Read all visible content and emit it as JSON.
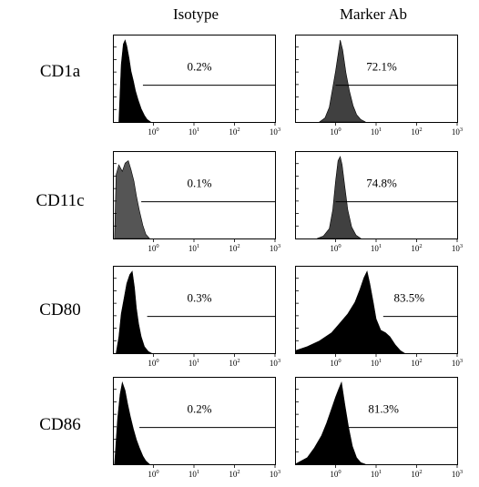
{
  "columns": [
    "Isotype",
    "Marker Ab"
  ],
  "rows": [
    "CD1a",
    "CD11c",
    "CD80",
    "CD86"
  ],
  "chart_data": [
    {
      "type": "area",
      "row": "CD1a",
      "column": "Isotype",
      "fill": "#000000",
      "gate_percent": "0.2%",
      "gate_from": 0.55,
      "xscale": "log",
      "xlim": [
        0.1,
        1000
      ],
      "xticks": [
        "10^0",
        "10^1",
        "10^2",
        "10^3"
      ],
      "x": [
        0.14,
        0.16,
        0.18,
        0.2,
        0.22,
        0.25,
        0.28,
        0.32,
        0.36,
        0.42,
        0.5,
        0.6,
        0.7,
        0.85
      ],
      "y": [
        0,
        0.7,
        0.95,
        1.0,
        0.93,
        0.78,
        0.62,
        0.5,
        0.38,
        0.27,
        0.16,
        0.08,
        0.03,
        0
      ]
    },
    {
      "type": "area",
      "row": "CD1a",
      "column": "Marker Ab",
      "fill": "#404040",
      "gate_percent": "72.1%",
      "gate_from": 1.0,
      "xscale": "log",
      "xlim": [
        0.1,
        1000
      ],
      "xticks": [
        "10^0",
        "10^1",
        "10^2",
        "10^3"
      ],
      "x": [
        0.4,
        0.55,
        0.7,
        0.85,
        1.0,
        1.15,
        1.3,
        1.5,
        1.8,
        2.2,
        2.7,
        3.3,
        4.2,
        5.5
      ],
      "y": [
        0,
        0.05,
        0.18,
        0.42,
        0.62,
        0.82,
        1.0,
        0.88,
        0.6,
        0.38,
        0.2,
        0.09,
        0.03,
        0
      ]
    },
    {
      "type": "area",
      "row": "CD11c",
      "column": "Isotype",
      "fill": "#555555",
      "gate_percent": "0.1%",
      "gate_from": 0.5,
      "xscale": "log",
      "xlim": [
        0.1,
        1000
      ],
      "xticks": [
        "10^0",
        "10^1",
        "10^2",
        "10^3"
      ],
      "x": [
        0.11,
        0.12,
        0.14,
        0.17,
        0.2,
        0.24,
        0.28,
        0.33,
        0.38,
        0.45,
        0.55,
        0.65,
        0.8
      ],
      "y": [
        0,
        0.78,
        0.9,
        0.82,
        0.92,
        0.95,
        0.84,
        0.7,
        0.52,
        0.34,
        0.16,
        0.05,
        0
      ]
    },
    {
      "type": "area",
      "row": "CD11c",
      "column": "Marker Ab",
      "fill": "#404040",
      "gate_percent": "74.8%",
      "gate_from": 1.0,
      "xscale": "log",
      "xlim": [
        0.1,
        1000
      ],
      "xticks": [
        "10^0",
        "10^1",
        "10^2",
        "10^3"
      ],
      "x": [
        0.35,
        0.5,
        0.7,
        0.85,
        1.0,
        1.15,
        1.3,
        1.45,
        1.7,
        2.0,
        2.5,
        3.2,
        4.2
      ],
      "y": [
        0,
        0.03,
        0.12,
        0.35,
        0.7,
        0.95,
        1.0,
        0.9,
        0.62,
        0.35,
        0.14,
        0.04,
        0
      ]
    },
    {
      "type": "area",
      "row": "CD80",
      "column": "Isotype",
      "fill": "#000000",
      "gate_percent": "0.3%",
      "gate_from": 0.7,
      "xscale": "log",
      "xlim": [
        0.1,
        1000
      ],
      "xticks": [
        "10^0",
        "10^1",
        "10^2",
        "10^3"
      ],
      "x": [
        0.12,
        0.14,
        0.16,
        0.19,
        0.22,
        0.26,
        0.3,
        0.34,
        0.38,
        0.43,
        0.5,
        0.6,
        0.75,
        0.9
      ],
      "y": [
        0,
        0.2,
        0.48,
        0.68,
        0.85,
        0.96,
        1.0,
        0.8,
        0.55,
        0.36,
        0.2,
        0.08,
        0.02,
        0
      ]
    },
    {
      "type": "area",
      "row": "CD80",
      "column": "Marker Ab",
      "fill": "#000000",
      "gate_percent": "83.5%",
      "gate_from": 15,
      "xscale": "log",
      "xlim": [
        0.1,
        1000
      ],
      "xticks": [
        "10^0",
        "10^1",
        "10^2",
        "10^3"
      ],
      "x": [
        0.1,
        0.2,
        0.4,
        0.8,
        1.2,
        2.0,
        3.0,
        4.0,
        5.0,
        6.0,
        7.0,
        8.5,
        10,
        13,
        17,
        22,
        30,
        40,
        50
      ],
      "y": [
        0.03,
        0.08,
        0.15,
        0.25,
        0.35,
        0.48,
        0.62,
        0.78,
        0.92,
        1.0,
        0.85,
        0.62,
        0.42,
        0.28,
        0.25,
        0.2,
        0.1,
        0.03,
        0
      ]
    },
    {
      "type": "area",
      "row": "CD86",
      "column": "Isotype",
      "fill": "#000000",
      "gate_percent": "0.2%",
      "gate_from": 0.45,
      "xscale": "log",
      "xlim": [
        0.1,
        1000
      ],
      "xticks": [
        "10^0",
        "10^1",
        "10^2",
        "10^3"
      ],
      "x": [
        0.11,
        0.13,
        0.15,
        0.17,
        0.2,
        0.23,
        0.27,
        0.32,
        0.38,
        0.45,
        0.55,
        0.65,
        0.8
      ],
      "y": [
        0,
        0.55,
        0.85,
        1.0,
        0.9,
        0.74,
        0.58,
        0.43,
        0.3,
        0.2,
        0.1,
        0.04,
        0
      ]
    },
    {
      "type": "area",
      "row": "CD86",
      "column": "Marker Ab",
      "fill": "#000000",
      "gate_percent": "81.3%",
      "gate_from": 1.6,
      "xscale": "log",
      "xlim": [
        0.1,
        1000
      ],
      "xticks": [
        "10^0",
        "10^1",
        "10^2",
        "10^3"
      ],
      "x": [
        0.1,
        0.2,
        0.3,
        0.45,
        0.6,
        0.8,
        1.0,
        1.2,
        1.4,
        1.7,
        2.1,
        2.6,
        3.3,
        4.2,
        5.5
      ],
      "y": [
        0,
        0.08,
        0.2,
        0.35,
        0.5,
        0.68,
        0.82,
        0.92,
        1.0,
        0.72,
        0.45,
        0.22,
        0.08,
        0.02,
        0
      ]
    }
  ]
}
